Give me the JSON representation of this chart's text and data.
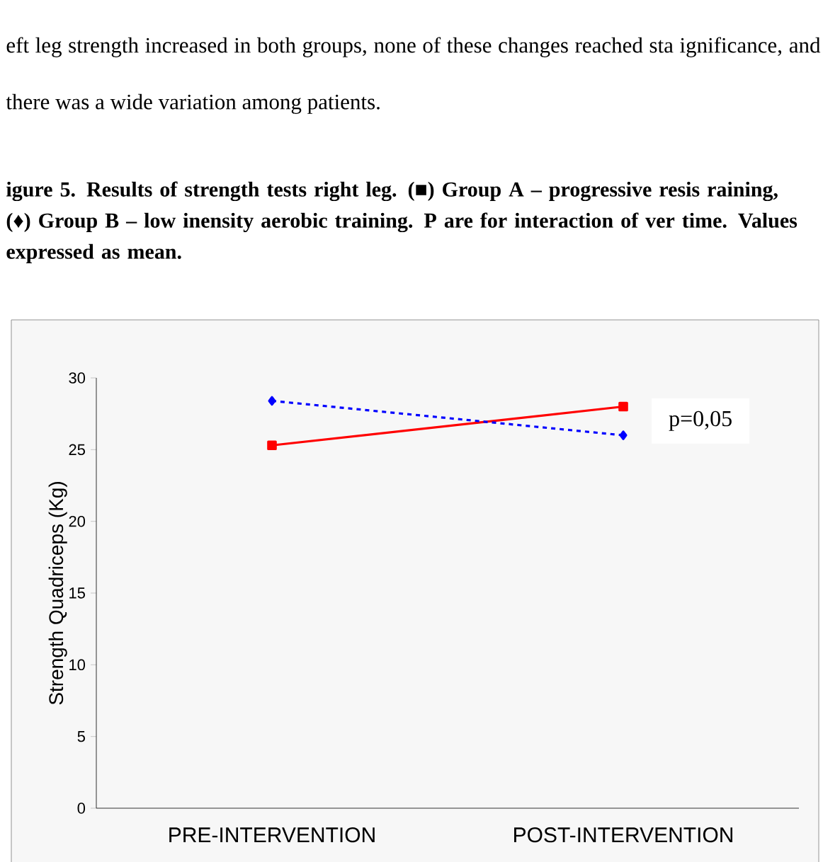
{
  "chart_data": {
    "type": "line",
    "title": "igure 5. Results of strength tests right leg. (■) Group A – progressive resis raining, (♦) Group B – low inensity aerobic training. P are for interaction of ver time. Values expressed as mean.",
    "ylabel": "Strength Quadriceps (Kg)",
    "categories": [
      "PRE-INTERVENTION",
      "POST-INTERVENTION"
    ],
    "series": [
      {
        "color": "#ff0000",
        "values": [
          25.3,
          28.0
        ],
        "marker": "square",
        "line_style": "solid"
      },
      {
        "color": "#0000ff",
        "values": [
          28.4,
          26.0
        ],
        "marker": "diamond",
        "line_style": "dashed"
      }
    ],
    "ylim": [
      0,
      30
    ],
    "yticks": [
      0,
      5,
      10,
      15,
      20,
      25,
      30
    ],
    "annotations": [
      "eft leg strength increased in both groups, none of these changes reached sta ignificance, and there was a wide variation among patients.",
      "p=0,05"
    ]
  }
}
